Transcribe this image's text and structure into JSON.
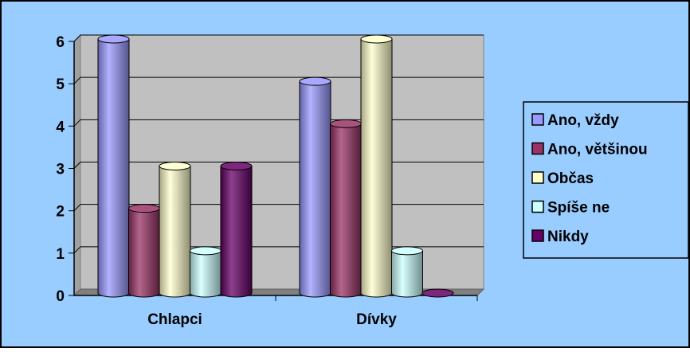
{
  "chart_data": {
    "type": "bar",
    "style": "3d-cylinder",
    "categories": [
      "Chlapci",
      "Dívky"
    ],
    "series": [
      {
        "name": "Ano, vždy",
        "values": [
          6,
          5
        ],
        "color": "#9999FF"
      },
      {
        "name": "Ano, většinou",
        "values": [
          2,
          4
        ],
        "color": "#993366"
      },
      {
        "name": "Občas",
        "values": [
          3,
          6
        ],
        "color": "#FFFFCC"
      },
      {
        "name": "Spíše ne",
        "values": [
          1,
          1
        ],
        "color": "#CCFFFF"
      },
      {
        "name": "Nikdy",
        "values": [
          3,
          0
        ],
        "color": "#660066"
      }
    ],
    "y_ticks": [
      "0",
      "1",
      "2",
      "3",
      "4",
      "5",
      "6"
    ],
    "ylim": [
      0,
      6
    ],
    "grid": true,
    "legend_position": "right",
    "background_color": "#99CCFF",
    "plot_wall_color": "#C0C0C0"
  }
}
